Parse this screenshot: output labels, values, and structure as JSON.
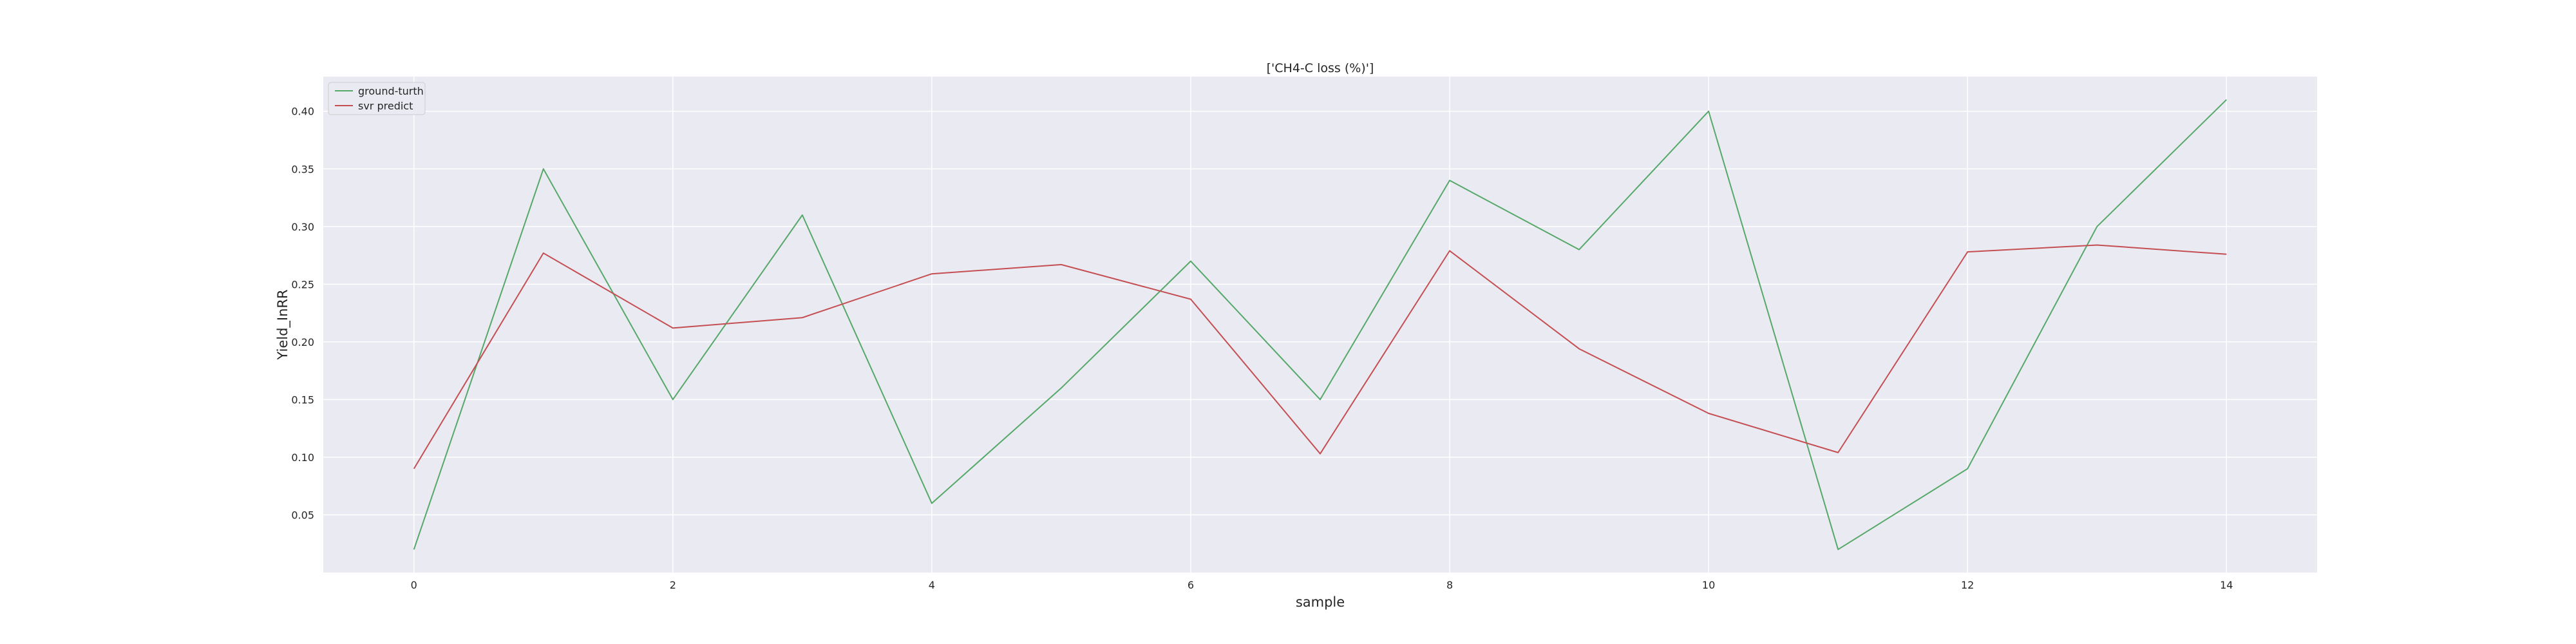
{
  "chart_data": {
    "type": "line",
    "title": "['CH4-C loss (%)']",
    "xlabel": "sample",
    "ylabel": "Yield_InRR",
    "x": [
      0,
      1,
      2,
      3,
      4,
      5,
      6,
      7,
      8,
      9,
      10,
      11,
      12,
      13,
      14
    ],
    "xlim": [
      -0.7,
      14.7
    ],
    "ylim": [
      0.0,
      0.43
    ],
    "xticks": [
      0,
      2,
      4,
      6,
      8,
      10,
      12,
      14
    ],
    "yticks": [
      0.05,
      0.1,
      0.15,
      0.2,
      0.25,
      0.3,
      0.35,
      0.4
    ],
    "grid": true,
    "legend_position": "upper-left",
    "background_color": "#eaeaf2",
    "grid_color": "#ffffff",
    "series": [
      {
        "name": "ground-turth",
        "color": "#55a868",
        "values": [
          0.02,
          0.35,
          0.15,
          0.31,
          0.06,
          0.16,
          0.27,
          0.15,
          0.34,
          0.28,
          0.4,
          0.02,
          0.09,
          0.3,
          0.41
        ]
      },
      {
        "name": "svr predict",
        "color": "#c44e52",
        "values": [
          0.09,
          0.277,
          0.212,
          0.221,
          0.259,
          0.267,
          0.237,
          0.103,
          0.279,
          0.194,
          0.138,
          0.104,
          0.278,
          0.284,
          0.276
        ]
      }
    ]
  }
}
